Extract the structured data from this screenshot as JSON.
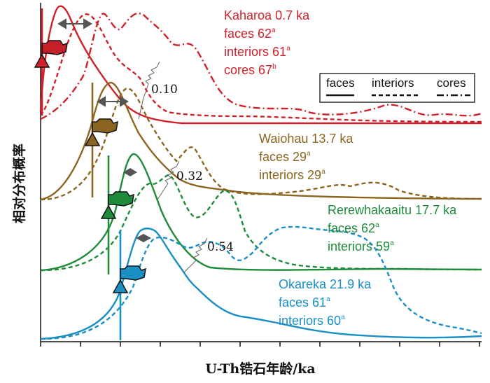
{
  "chart_data": {
    "type": "line",
    "xlabel": "U-Th锆石年龄/ka",
    "ylabel": "相对分布概率",
    "legend": {
      "position": "top-right",
      "entries": [
        {
          "label": "faces",
          "style": "solid"
        },
        {
          "label": "interiors",
          "style": "dashed"
        },
        {
          "label": "cores",
          "style": "dash-dot"
        }
      ]
    },
    "correlations": [
      "0.10",
      "0.32",
      "0.54"
    ],
    "eruptions": [
      {
        "name": "Kaharoa",
        "age": "0.7 ka",
        "color": "#d0202a",
        "counts": [
          {
            "label": "faces",
            "n": "62",
            "sup": "a"
          },
          {
            "label": "interiors",
            "n": "61",
            "sup": "a"
          },
          {
            "label": "cores",
            "n": "67",
            "sup": "b"
          }
        ]
      },
      {
        "name": "Waiohau",
        "age": "13.7 ka",
        "color": "#8b6520",
        "counts": [
          {
            "label": "faces",
            "n": "29",
            "sup": "a"
          },
          {
            "label": "interiors",
            "n": "29",
            "sup": "a"
          }
        ]
      },
      {
        "name": "Rerewhakaaitu",
        "age": "17.7 ka",
        "color": "#1e8c3a",
        "counts": [
          {
            "label": "faces",
            "n": "62",
            "sup": "a"
          },
          {
            "label": "interiors",
            "n": "59",
            "sup": "a"
          }
        ]
      },
      {
        "name": "Okareka",
        "age": "21.9 ka",
        "color": "#1a8fc4",
        "counts": [
          {
            "label": "faces",
            "n": "61",
            "sup": "a"
          },
          {
            "label": "interiors",
            "n": "60",
            "sup": "a"
          }
        ]
      }
    ]
  }
}
